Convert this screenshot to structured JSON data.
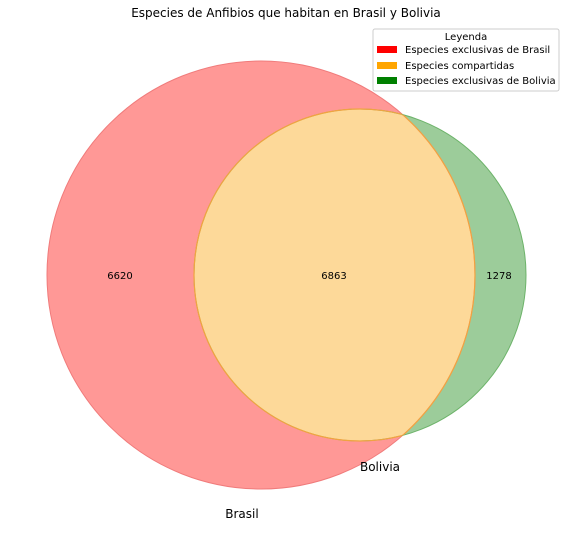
{
  "title": "Especies de Anfibios que habitan en Brasil y Bolivia",
  "sets": {
    "brasil": {
      "label": "Brasil",
      "color": "#ff0000"
    },
    "bolivia": {
      "label": "Bolivia",
      "color": "#008000"
    }
  },
  "regions": {
    "brasil_only": "6620",
    "shared": "6863",
    "bolivia_only": "1278"
  },
  "colors": {
    "brasil_fill": "#ff9896",
    "brasil_edge": "#f07b7b",
    "bolivia_fill": "#9ccc9a",
    "bolivia_edge": "#6db36a",
    "shared_fill": "#fdd999",
    "shared_edge": "#f2a340"
  },
  "legend": {
    "title": "Leyenda",
    "items": [
      {
        "label": "Especies exclusivas de Brasil",
        "color": "#ff0000"
      },
      {
        "label": "Especies compartidas",
        "color": "#ffa500"
      },
      {
        "label": "Especies exclusivas de Bolivia",
        "color": "#008000"
      }
    ]
  }
}
